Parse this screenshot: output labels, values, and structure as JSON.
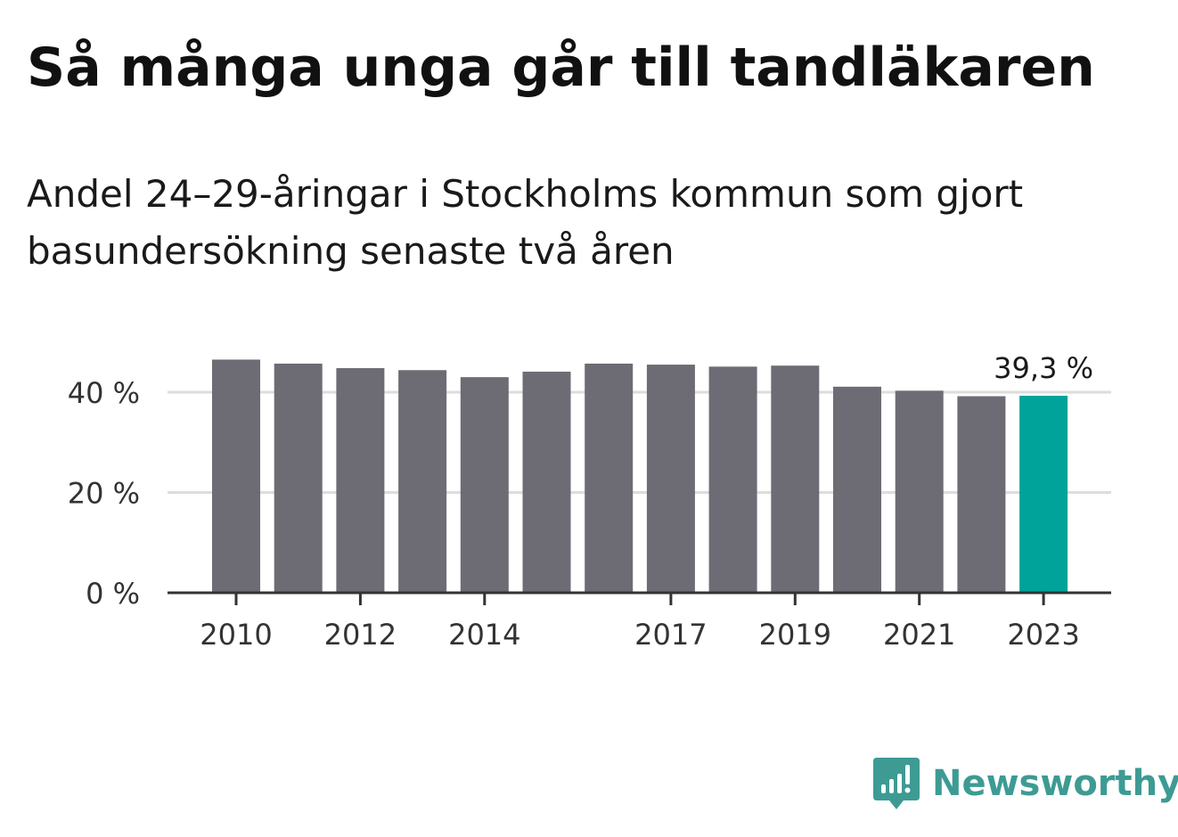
{
  "title": "Så många unga går till tandläkaren",
  "subtitle": "Andel 24–29-åringar i Stockholms kommun som gjort basundersökning senaste två åren",
  "brand": {
    "name": "Newsworthy",
    "icon": "newsworthy-logo-icon",
    "color": "#3d9b94"
  },
  "colors": {
    "bar": "#6d6c74",
    "highlight": "#00a39a",
    "grid": "#dddddd",
    "axis": "#333333"
  },
  "chart_data": {
    "type": "bar",
    "categories": [
      "2010",
      "2011",
      "2012",
      "2013",
      "2014",
      "2015",
      "2016",
      "2017",
      "2018",
      "2019",
      "2020",
      "2021",
      "2022",
      "2023"
    ],
    "values": [
      46.5,
      45.7,
      44.8,
      44.4,
      43.0,
      44.1,
      45.7,
      45.5,
      45.1,
      45.3,
      41.1,
      40.3,
      39.2,
      39.3
    ],
    "x_tick_labels": [
      "2010",
      "2012",
      "2014",
      "2017",
      "2019",
      "2021",
      "2023"
    ],
    "y_ticks": [
      0,
      20,
      40
    ],
    "y_tick_labels": [
      "0 %",
      "20 %",
      "40 %"
    ],
    "ylim": [
      0,
      50
    ],
    "grid": true,
    "highlight": {
      "category": "2023",
      "label": "39,3 %"
    },
    "xlabel": "",
    "ylabel": ""
  }
}
